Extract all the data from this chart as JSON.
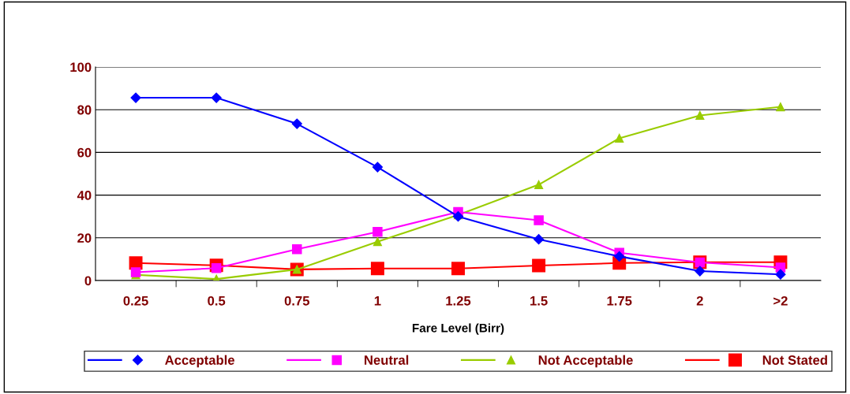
{
  "chart_data": {
    "type": "line",
    "xlabel": "Fare Level (Birr)",
    "categories": [
      "0.25",
      "0.5",
      "0.75",
      "1",
      "1.25",
      "1.5",
      "1.75",
      "2",
      ">2"
    ],
    "series": [
      {
        "name": "Acceptable",
        "color": "#0000ff",
        "marker": "diamond",
        "values": [
          85.6,
          85.6,
          73.4,
          53.1,
          30,
          19.3,
          11.3,
          4.4,
          2.9
        ]
      },
      {
        "name": "Neutral",
        "color": "#ff00ff",
        "marker": "square",
        "values": [
          3.9,
          5.8,
          14.7,
          22.8,
          32.1,
          28.2,
          13,
          8.5,
          6.1
        ]
      },
      {
        "name": "Not Acceptable",
        "color": "#99cc00",
        "marker": "triangle",
        "values": [
          2.7,
          0.7,
          5.2,
          18.2,
          30.7,
          44.9,
          66.6,
          77.3,
          81.3
        ]
      },
      {
        "name": "Not Stated",
        "color": "#ff0000",
        "marker": "square",
        "values": [
          8.2,
          7.1,
          5.2,
          5.6,
          5.6,
          7.0,
          8.2,
          8.6,
          8.6
        ]
      }
    ],
    "ylim": [
      0,
      100
    ],
    "yticks": [
      0,
      20,
      40,
      60,
      80,
      100
    ],
    "grid": "y",
    "legend": "bottom"
  }
}
